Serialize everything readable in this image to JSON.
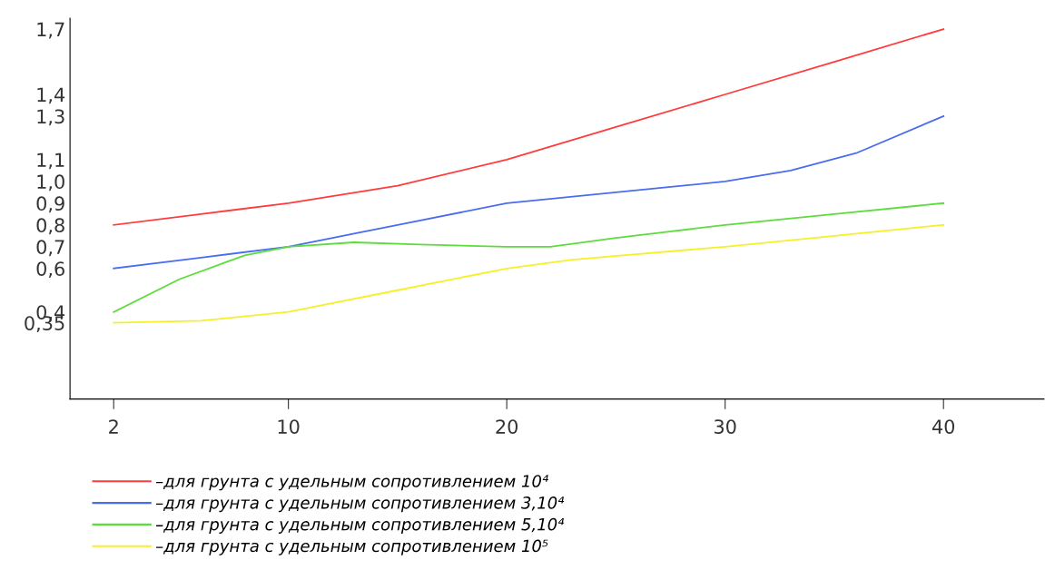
{
  "chart_data": {
    "type": "line",
    "xlim": [
      0,
      44.6
    ],
    "ylim": [
      0,
      1.75
    ],
    "xticks": [
      2,
      10,
      20,
      30,
      40
    ],
    "yticks": [
      {
        "value": 0.35,
        "label": "0,35"
      },
      {
        "value": 0.4,
        "label": "0,4"
      },
      {
        "value": 0.6,
        "label": "0,6"
      },
      {
        "value": 0.7,
        "label": "0,7"
      },
      {
        "value": 0.8,
        "label": "0,8"
      },
      {
        "value": 0.9,
        "label": "0,9"
      },
      {
        "value": 1.0,
        "label": "1,0"
      },
      {
        "value": 1.1,
        "label": "1,1"
      },
      {
        "value": 1.3,
        "label": "1,3"
      },
      {
        "value": 1.4,
        "label": "1,4"
      },
      {
        "value": 1.7,
        "label": "1,7"
      }
    ],
    "grid": false,
    "legend": "bottom left",
    "series": [
      {
        "name": "–для грунта с удельным сопротивлением 10⁴",
        "color": "#ff3b3b",
        "x": [
          2,
          6,
          10,
          15,
          20,
          25,
          30,
          35,
          40
        ],
        "values": [
          0.8,
          0.85,
          0.9,
          0.98,
          1.1,
          1.25,
          1.4,
          1.55,
          1.7
        ]
      },
      {
        "name": "–для грунта с удельным сопротивлением 3,10⁴",
        "color": "#4a6cf0",
        "x": [
          2,
          6,
          10,
          15,
          20,
          25,
          30,
          33,
          36,
          40
        ],
        "values": [
          0.6,
          0.65,
          0.7,
          0.8,
          0.9,
          0.95,
          1.0,
          1.05,
          1.13,
          1.3
        ]
      },
      {
        "name": "–для грунта с удельным сопротивлением 5,10⁴",
        "color": "#5ddc3c",
        "x": [
          2,
          5,
          8,
          10,
          13,
          16,
          20,
          22,
          25,
          30,
          35,
          40
        ],
        "values": [
          0.4,
          0.55,
          0.66,
          0.7,
          0.72,
          0.71,
          0.7,
          0.7,
          0.74,
          0.8,
          0.85,
          0.9
        ]
      },
      {
        "name": "–для грунта с удельным сопротивлением 10⁵",
        "color": "#f5f02a",
        "x": [
          2,
          6,
          10,
          15,
          20,
          23,
          30,
          35,
          40
        ],
        "values": [
          0.35,
          0.36,
          0.4,
          0.5,
          0.6,
          0.64,
          0.7,
          0.75,
          0.8
        ]
      }
    ]
  }
}
